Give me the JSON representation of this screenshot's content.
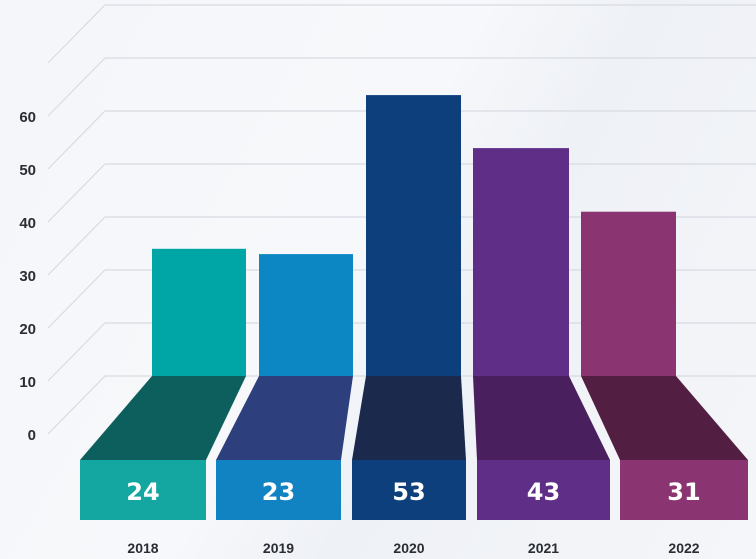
{
  "chart_data": {
    "type": "bar",
    "categories": [
      "2018",
      "2019",
      "2020",
      "2021",
      "2022"
    ],
    "values": [
      24,
      23,
      53,
      43,
      31
    ],
    "ylim": [
      0,
      60
    ],
    "yticks": [
      0,
      10,
      20,
      30,
      40,
      50,
      60
    ],
    "grid": true,
    "legend": "none",
    "colors": {
      "front": [
        "#00a6a6",
        "#0c87c4",
        "#0d3f7d",
        "#5f2e86",
        "#8a3572"
      ],
      "floor": [
        "#0c5f5c",
        "#2d3f7c",
        "#1b2a4c",
        "#4a1f5e",
        "#521f43"
      ],
      "label_box": [
        "#14a6a0",
        "#1283c2",
        "#0d3f7d",
        "#5f2e86",
        "#8a3572"
      ]
    }
  }
}
